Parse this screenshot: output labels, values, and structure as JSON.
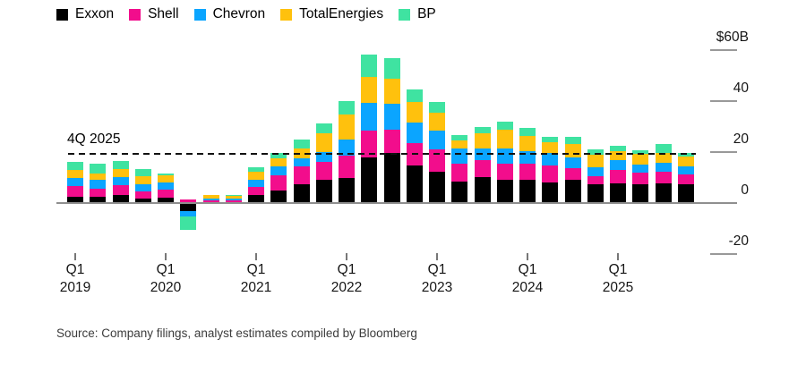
{
  "source": {
    "text": "Source: Company filings, analyst estimates compiled by Bloomberg"
  },
  "colors": {
    "background": "#ffffff",
    "axis": "#8f8f8f",
    "tick": "#999999",
    "text": "#161616",
    "source_text": "#3c3c3c",
    "reference_line": "#111111"
  },
  "chart_data": {
    "type": "bar",
    "stacked": true,
    "title": "",
    "unit": "$B",
    "legend_position": "top-left",
    "grid": false,
    "ylim": [
      -25,
      62
    ],
    "categories": [
      "Q1 2019",
      "Q2 2019",
      "Q3 2019",
      "Q4 2019",
      "Q1 2020",
      "Q2 2020",
      "Q3 2020",
      "Q4 2020",
      "Q1 2021",
      "Q2 2021",
      "Q3 2021",
      "Q4 2021",
      "Q1 2022",
      "Q2 2022",
      "Q3 2022",
      "Q4 2022",
      "Q1 2023",
      "Q2 2023",
      "Q3 2023",
      "Q4 2023",
      "Q1 2024",
      "Q2 2024",
      "Q3 2024",
      "Q4 2024",
      "Q1 2025",
      "Q2 2025",
      "Q3 2025",
      "Q4 2025"
    ],
    "series": [
      {
        "name": "Exxon",
        "color": "#000000",
        "values": [
          2.6,
          2.3,
          3.2,
          1.6,
          2.0,
          -3.3,
          0.0,
          0.2,
          3.2,
          4.9,
          7.5,
          9.0,
          9.7,
          17.9,
          19.5,
          14.6,
          12.3,
          8.5,
          10.2,
          9.0,
          9.0,
          8.2,
          9.0,
          7.4,
          7.6,
          7.3,
          7.6,
          7.2
        ]
      },
      {
        "name": "Shell",
        "color": "#F20D8C",
        "values": [
          4.1,
          3.4,
          3.9,
          3.0,
          3.2,
          1.4,
          1.2,
          0.8,
          3.2,
          6.1,
          6.8,
          7.3,
          9.0,
          10.4,
          9.1,
          8.8,
          8.8,
          7.0,
          6.8,
          6.4,
          6.5,
          6.7,
          4.7,
          3.2,
          5.3,
          4.7,
          4.7,
          4.0
        ]
      },
      {
        "name": "Chevron",
        "color": "#0BA5FF",
        "values": [
          3.2,
          3.3,
          3.2,
          2.8,
          3.0,
          -1.8,
          0.6,
          0.6,
          2.7,
          3.3,
          3.3,
          3.6,
          6.2,
          11.1,
          10.5,
          8.2,
          7.4,
          5.8,
          4.3,
          6.0,
          4.7,
          4.7,
          4.2,
          3.5,
          4.1,
          3.2,
          3.5,
          3.2
        ]
      },
      {
        "name": "TotalEnergies",
        "color": "#FFC10D",
        "values": [
          3.0,
          2.6,
          2.9,
          3.0,
          2.8,
          0.0,
          1.2,
          1.3,
          3.2,
          3.3,
          3.7,
          7.5,
          9.8,
          9.9,
          9.6,
          8.2,
          7.0,
          3.2,
          6.2,
          7.5,
          6.1,
          4.2,
          5.1,
          4.9,
          3.5,
          4.2,
          3.7,
          4.0
        ]
      },
      {
        "name": "BP",
        "color": "#3FE3A1",
        "values": [
          3.2,
          3.8,
          3.3,
          2.9,
          0.7,
          -5.6,
          0.0,
          0.1,
          1.8,
          2.0,
          3.7,
          3.9,
          5.4,
          8.9,
          8.0,
          4.7,
          4.0,
          2.0,
          2.3,
          3.0,
          3.3,
          2.3,
          3.0,
          2.1,
          2.1,
          1.4,
          3.5,
          1.1
        ]
      }
    ],
    "yticks": [
      {
        "label": "$60B",
        "value": 60
      },
      {
        "label": "40",
        "value": 40
      },
      {
        "label": "20",
        "value": 20
      },
      {
        "label": "0",
        "value": 0
      },
      {
        "label": "-20",
        "value": -20
      }
    ],
    "xticks": [
      {
        "line1": "Q1",
        "line2": "2019",
        "category_index": 0
      },
      {
        "line1": "Q1",
        "line2": "2020",
        "category_index": 4
      },
      {
        "line1": "Q1",
        "line2": "2021",
        "category_index": 8
      },
      {
        "line1": "Q1",
        "line2": "2022",
        "category_index": 12
      },
      {
        "line1": "Q1",
        "line2": "2023",
        "category_index": 16
      },
      {
        "line1": "Q1",
        "line2": "2024",
        "category_index": 20
      },
      {
        "line1": "Q1",
        "line2": "2025",
        "category_index": 24
      }
    ],
    "reference_line": {
      "label": "4Q 2025",
      "value": 19.3,
      "style": "dashed"
    }
  }
}
